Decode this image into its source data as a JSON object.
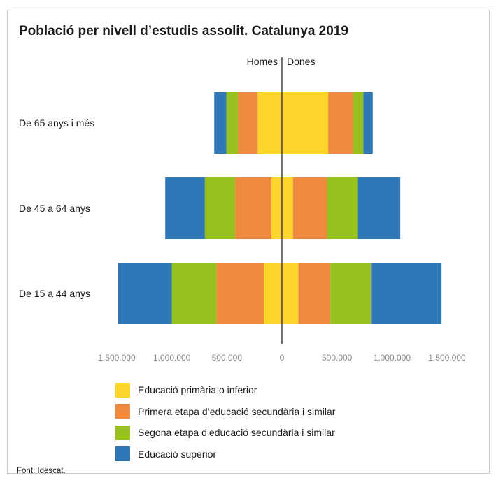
{
  "title": "Població per nivell d’estudis assolit. Catalunya 2019",
  "source": "Font: Idescat.",
  "colors": {
    "primaria": "#FDD52B",
    "primera_etapa": "#F0883D",
    "segona_etapa": "#96C11E",
    "superior": "#2E78B7",
    "axis": "#444444",
    "tick_text": "#8a8a8a"
  },
  "chart_data": {
    "type": "bar",
    "orientation": "horizontal-stacked-pyramid",
    "side_labels": {
      "left": "Homes",
      "right": "Dones"
    },
    "categories": [
      "De 65 anys i més",
      "De 45 a 64 anys",
      "De 15 a 44 anys"
    ],
    "xlim": [
      -1500000,
      1500000
    ],
    "x_ticks": [
      -1500000,
      -1000000,
      -500000,
      0,
      500000,
      1000000,
      1500000
    ],
    "x_tick_labels": [
      "1.500.000",
      "1.000.000",
      "500.000",
      "0",
      "500.000",
      "1.000.000",
      "1.500.000"
    ],
    "grid": false,
    "legend_position": "bottom",
    "series": [
      {
        "name": "Educació primària o inferior",
        "color_key": "primaria",
        "homes": [
          220000,
          95000,
          165000
        ],
        "dones": [
          420000,
          100000,
          150000
        ]
      },
      {
        "name": "Primera etapa d’educació secundària i similar",
        "color_key": "primera_etapa",
        "homes": [
          180000,
          330000,
          430000
        ],
        "dones": [
          225000,
          310000,
          290000
        ]
      },
      {
        "name": "Segona etapa d’educació secundària i similar",
        "color_key": "segona_etapa",
        "homes": [
          105000,
          275000,
          405000
        ],
        "dones": [
          95000,
          280000,
          375000
        ]
      },
      {
        "name": "Educació superior",
        "color_key": "superior",
        "homes": [
          110000,
          360000,
          490000
        ],
        "dones": [
          85000,
          385000,
          635000
        ]
      }
    ]
  }
}
